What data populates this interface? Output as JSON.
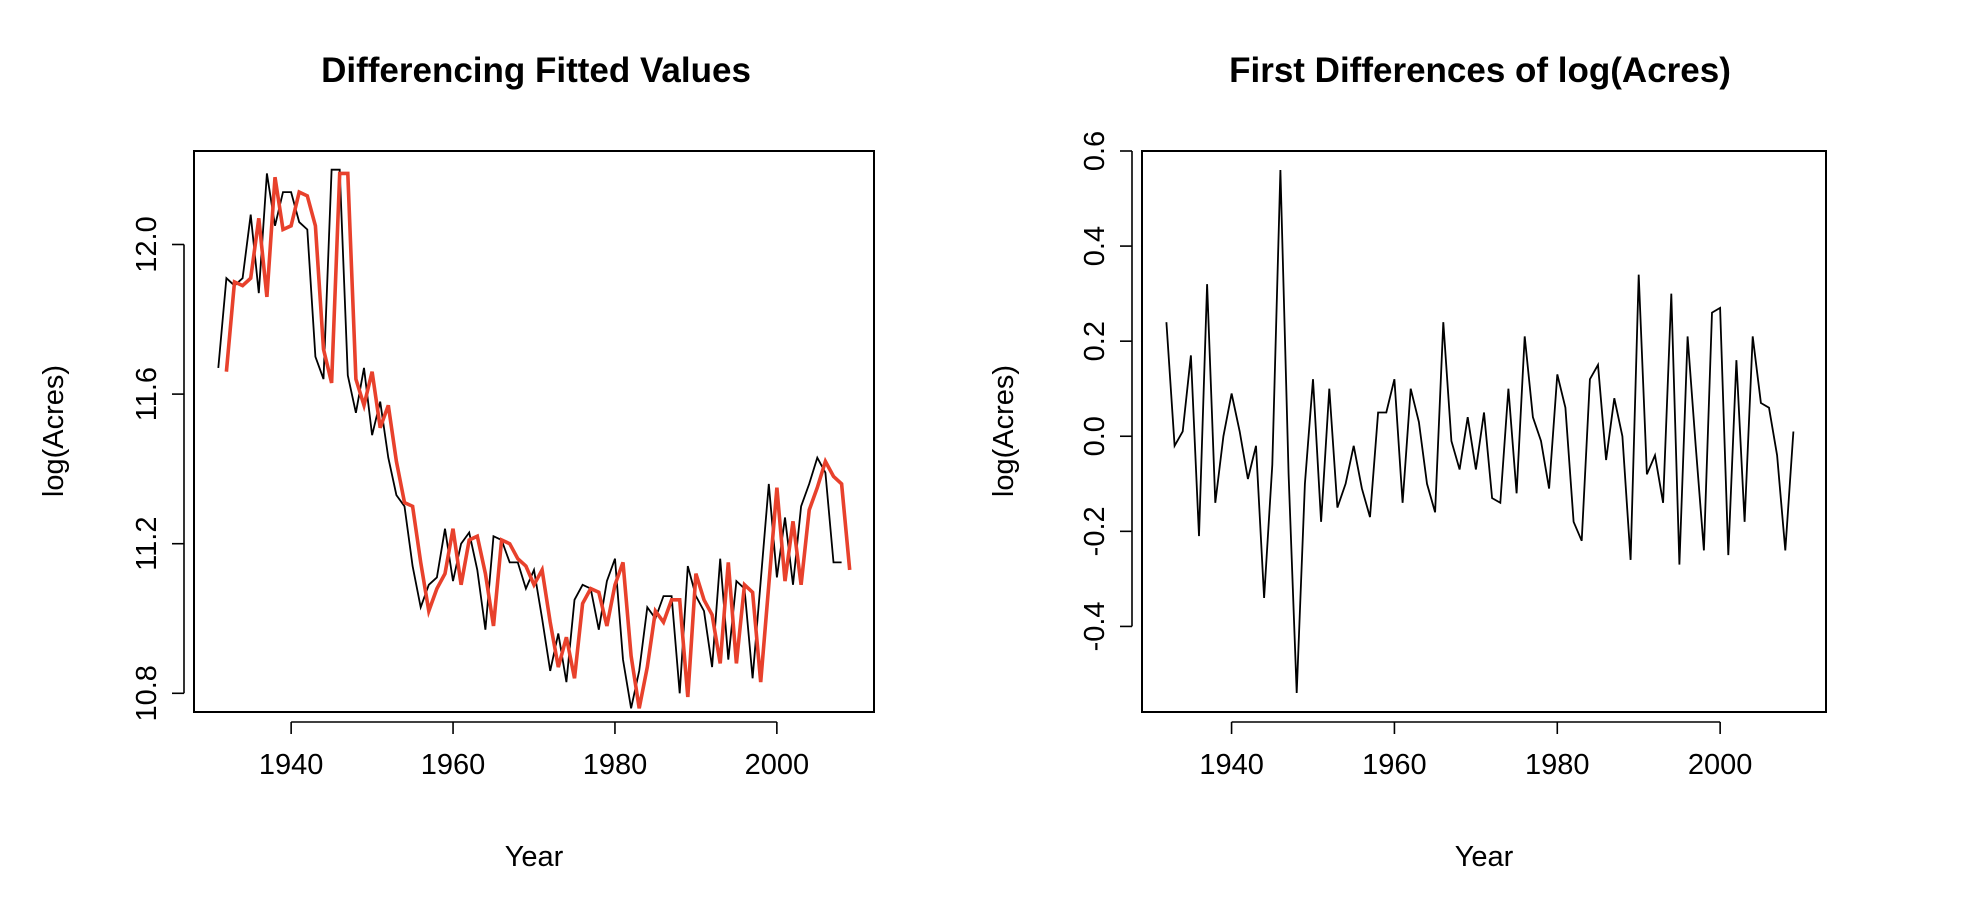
{
  "colors": {
    "background": "#ffffff",
    "axis": "#000000",
    "observed": "#000000",
    "fitted": "#e8412c"
  },
  "chart_data": [
    {
      "type": "line",
      "title": "Differencing Fitted Values",
      "xlabel": "Year",
      "ylabel": "log(Acres)",
      "xlim": [
        1928,
        2012
      ],
      "ylim": [
        10.75,
        12.25
      ],
      "xticks": [
        1940,
        1960,
        1980,
        2000
      ],
      "xtick_labels": [
        "1940",
        "1960",
        "1980",
        "2000"
      ],
      "yticks": [
        10.8,
        11.2,
        11.6,
        12.0
      ],
      "ytick_labels": [
        "10.8",
        "11.2",
        "11.6",
        "12.0"
      ],
      "grid": false,
      "series": [
        {
          "name": "log(Acres)",
          "color": "#000000",
          "x": [
            1931,
            1932,
            1933,
            1934,
            1935,
            1936,
            1937,
            1938,
            1939,
            1940,
            1941,
            1942,
            1943,
            1944,
            1945,
            1946,
            1947,
            1948,
            1949,
            1950,
            1951,
            1952,
            1953,
            1954,
            1955,
            1956,
            1957,
            1958,
            1959,
            1960,
            1961,
            1962,
            1963,
            1964,
            1965,
            1966,
            1967,
            1968,
            1969,
            1970,
            1971,
            1972,
            1973,
            1974,
            1975,
            1976,
            1977,
            1978,
            1979,
            1980,
            1981,
            1982,
            1983,
            1984,
            1985,
            1986,
            1987,
            1988,
            1989,
            1990,
            1991,
            1992,
            1993,
            1994,
            1995,
            1996,
            1997,
            1998,
            1999,
            2000,
            2001,
            2002,
            2003,
            2004,
            2005,
            2006,
            2007,
            2008,
            2009
          ],
          "values": [
            11.67,
            11.91,
            11.89,
            11.91,
            12.08,
            11.87,
            12.19,
            12.05,
            12.14,
            12.14,
            12.06,
            12.04,
            11.7,
            11.64,
            12.2,
            12.2,
            11.65,
            11.55,
            11.67,
            11.49,
            11.58,
            11.43,
            11.33,
            11.3,
            11.14,
            11.03,
            11.09,
            11.11,
            11.24,
            11.1,
            11.2,
            11.23,
            11.13,
            10.97,
            11.22,
            11.21,
            11.15,
            11.15,
            11.08,
            11.13,
            11.0,
            10.86,
            10.96,
            10.83,
            11.05,
            11.09,
            11.08,
            10.97,
            11.1,
            11.16,
            10.89,
            10.76,
            10.86,
            11.03,
            11.0,
            11.06,
            11.06,
            10.8,
            11.14,
            11.06,
            11.02,
            10.87,
            11.16,
            10.89,
            11.1,
            11.08,
            10.84,
            11.1,
            11.36,
            11.11,
            11.27,
            11.09,
            11.3,
            11.36,
            11.43,
            11.39,
            11.15,
            11.15,
            null
          ],
          "note": "observed log(Acres)"
        },
        {
          "name": "fitted",
          "color": "#e8412c",
          "x": [
            1932,
            1933,
            1934,
            1935,
            1936,
            1937,
            1938,
            1939,
            1940,
            1941,
            1942,
            1943,
            1944,
            1945,
            1946,
            1947,
            1948,
            1949,
            1950,
            1951,
            1952,
            1953,
            1954,
            1955,
            1956,
            1957,
            1958,
            1959,
            1960,
            1961,
            1962,
            1963,
            1964,
            1965,
            1966,
            1967,
            1968,
            1969,
            1970,
            1971,
            1972,
            1973,
            1974,
            1975,
            1976,
            1977,
            1978,
            1979,
            1980,
            1981,
            1982,
            1983,
            1984,
            1985,
            1986,
            1987,
            1988,
            1989,
            1990,
            1991,
            1992,
            1993,
            1994,
            1995,
            1996,
            1997,
            1998,
            1999,
            2000,
            2001,
            2002,
            2003,
            2004,
            2005,
            2006,
            2007,
            2008,
            2009
          ],
          "values": [
            11.66,
            11.9,
            11.89,
            11.91,
            12.07,
            11.86,
            12.18,
            12.04,
            12.05,
            12.14,
            12.13,
            12.05,
            11.72,
            11.63,
            12.19,
            12.19,
            11.64,
            11.57,
            11.66,
            11.51,
            11.57,
            11.42,
            11.31,
            11.3,
            11.15,
            11.02,
            11.08,
            11.12,
            11.24,
            11.09,
            11.21,
            11.22,
            11.12,
            10.98,
            11.21,
            11.2,
            11.16,
            11.14,
            11.09,
            11.13,
            10.99,
            10.87,
            10.95,
            10.84,
            11.04,
            11.08,
            11.07,
            10.98,
            11.09,
            11.15,
            10.9,
            10.76,
            10.87,
            11.02,
            10.99,
            11.05,
            11.05,
            10.79,
            11.12,
            11.05,
            11.01,
            10.88,
            11.15,
            10.88,
            11.09,
            11.07,
            10.83,
            11.09,
            11.35,
            11.1,
            11.26,
            11.09,
            11.29,
            11.35,
            11.42,
            11.38,
            11.36,
            11.13
          ]
        }
      ]
    },
    {
      "type": "line",
      "title": "First Differences of log(Acres)",
      "xlabel": "Year",
      "ylabel": "log(Acres)",
      "xlim": [
        1929,
        2013
      ],
      "ylim": [
        -0.58,
        0.6
      ],
      "xticks": [
        1940,
        1960,
        1980,
        2000
      ],
      "xtick_labels": [
        "1940",
        "1960",
        "1980",
        "2000"
      ],
      "yticks": [
        -0.4,
        -0.2,
        0.0,
        0.2,
        0.4,
        0.6
      ],
      "ytick_labels": [
        "-0.4",
        "-0.2",
        "0.0",
        "0.2",
        "0.4",
        "0.6"
      ],
      "grid": false,
      "series": [
        {
          "name": "diff(log(Acres))",
          "color": "#000000",
          "x": [
            1932,
            1933,
            1934,
            1935,
            1936,
            1937,
            1938,
            1939,
            1940,
            1941,
            1942,
            1943,
            1944,
            1945,
            1946,
            1947,
            1948,
            1949,
            1950,
            1951,
            1952,
            1953,
            1954,
            1955,
            1956,
            1957,
            1958,
            1959,
            1960,
            1961,
            1962,
            1963,
            1964,
            1965,
            1966,
            1967,
            1968,
            1969,
            1970,
            1971,
            1972,
            1973,
            1974,
            1975,
            1976,
            1977,
            1978,
            1979,
            1980,
            1981,
            1982,
            1983,
            1984,
            1985,
            1986,
            1987,
            1988,
            1989,
            1990,
            1991,
            1992,
            1993,
            1994,
            1995,
            1996,
            1997,
            1998,
            1999,
            2000,
            2001,
            2002,
            2003,
            2004,
            2005,
            2006,
            2007,
            2008,
            2009
          ],
          "values": [
            0.24,
            -0.02,
            0.01,
            0.17,
            -0.21,
            0.32,
            -0.14,
            0.0,
            0.09,
            0.01,
            -0.09,
            -0.02,
            -0.34,
            -0.06,
            0.56,
            -0.08,
            -0.54,
            -0.1,
            0.12,
            -0.18,
            0.1,
            -0.15,
            -0.1,
            -0.02,
            -0.11,
            -0.17,
            0.05,
            0.05,
            0.12,
            -0.14,
            0.1,
            0.03,
            -0.1,
            -0.16,
            0.24,
            -0.01,
            -0.07,
            0.04,
            -0.07,
            0.05,
            -0.13,
            -0.14,
            0.1,
            -0.12,
            0.21,
            0.04,
            -0.01,
            -0.11,
            0.13,
            0.06,
            -0.18,
            -0.22,
            0.12,
            0.15,
            -0.05,
            0.08,
            0.0,
            -0.26,
            0.34,
            -0.08,
            -0.04,
            -0.14,
            0.3,
            -0.27,
            0.21,
            -0.02,
            -0.24,
            0.26,
            0.27,
            -0.25,
            0.16,
            -0.18,
            0.21,
            0.07,
            0.06,
            -0.04,
            -0.24,
            0.01
          ]
        }
      ]
    }
  ]
}
